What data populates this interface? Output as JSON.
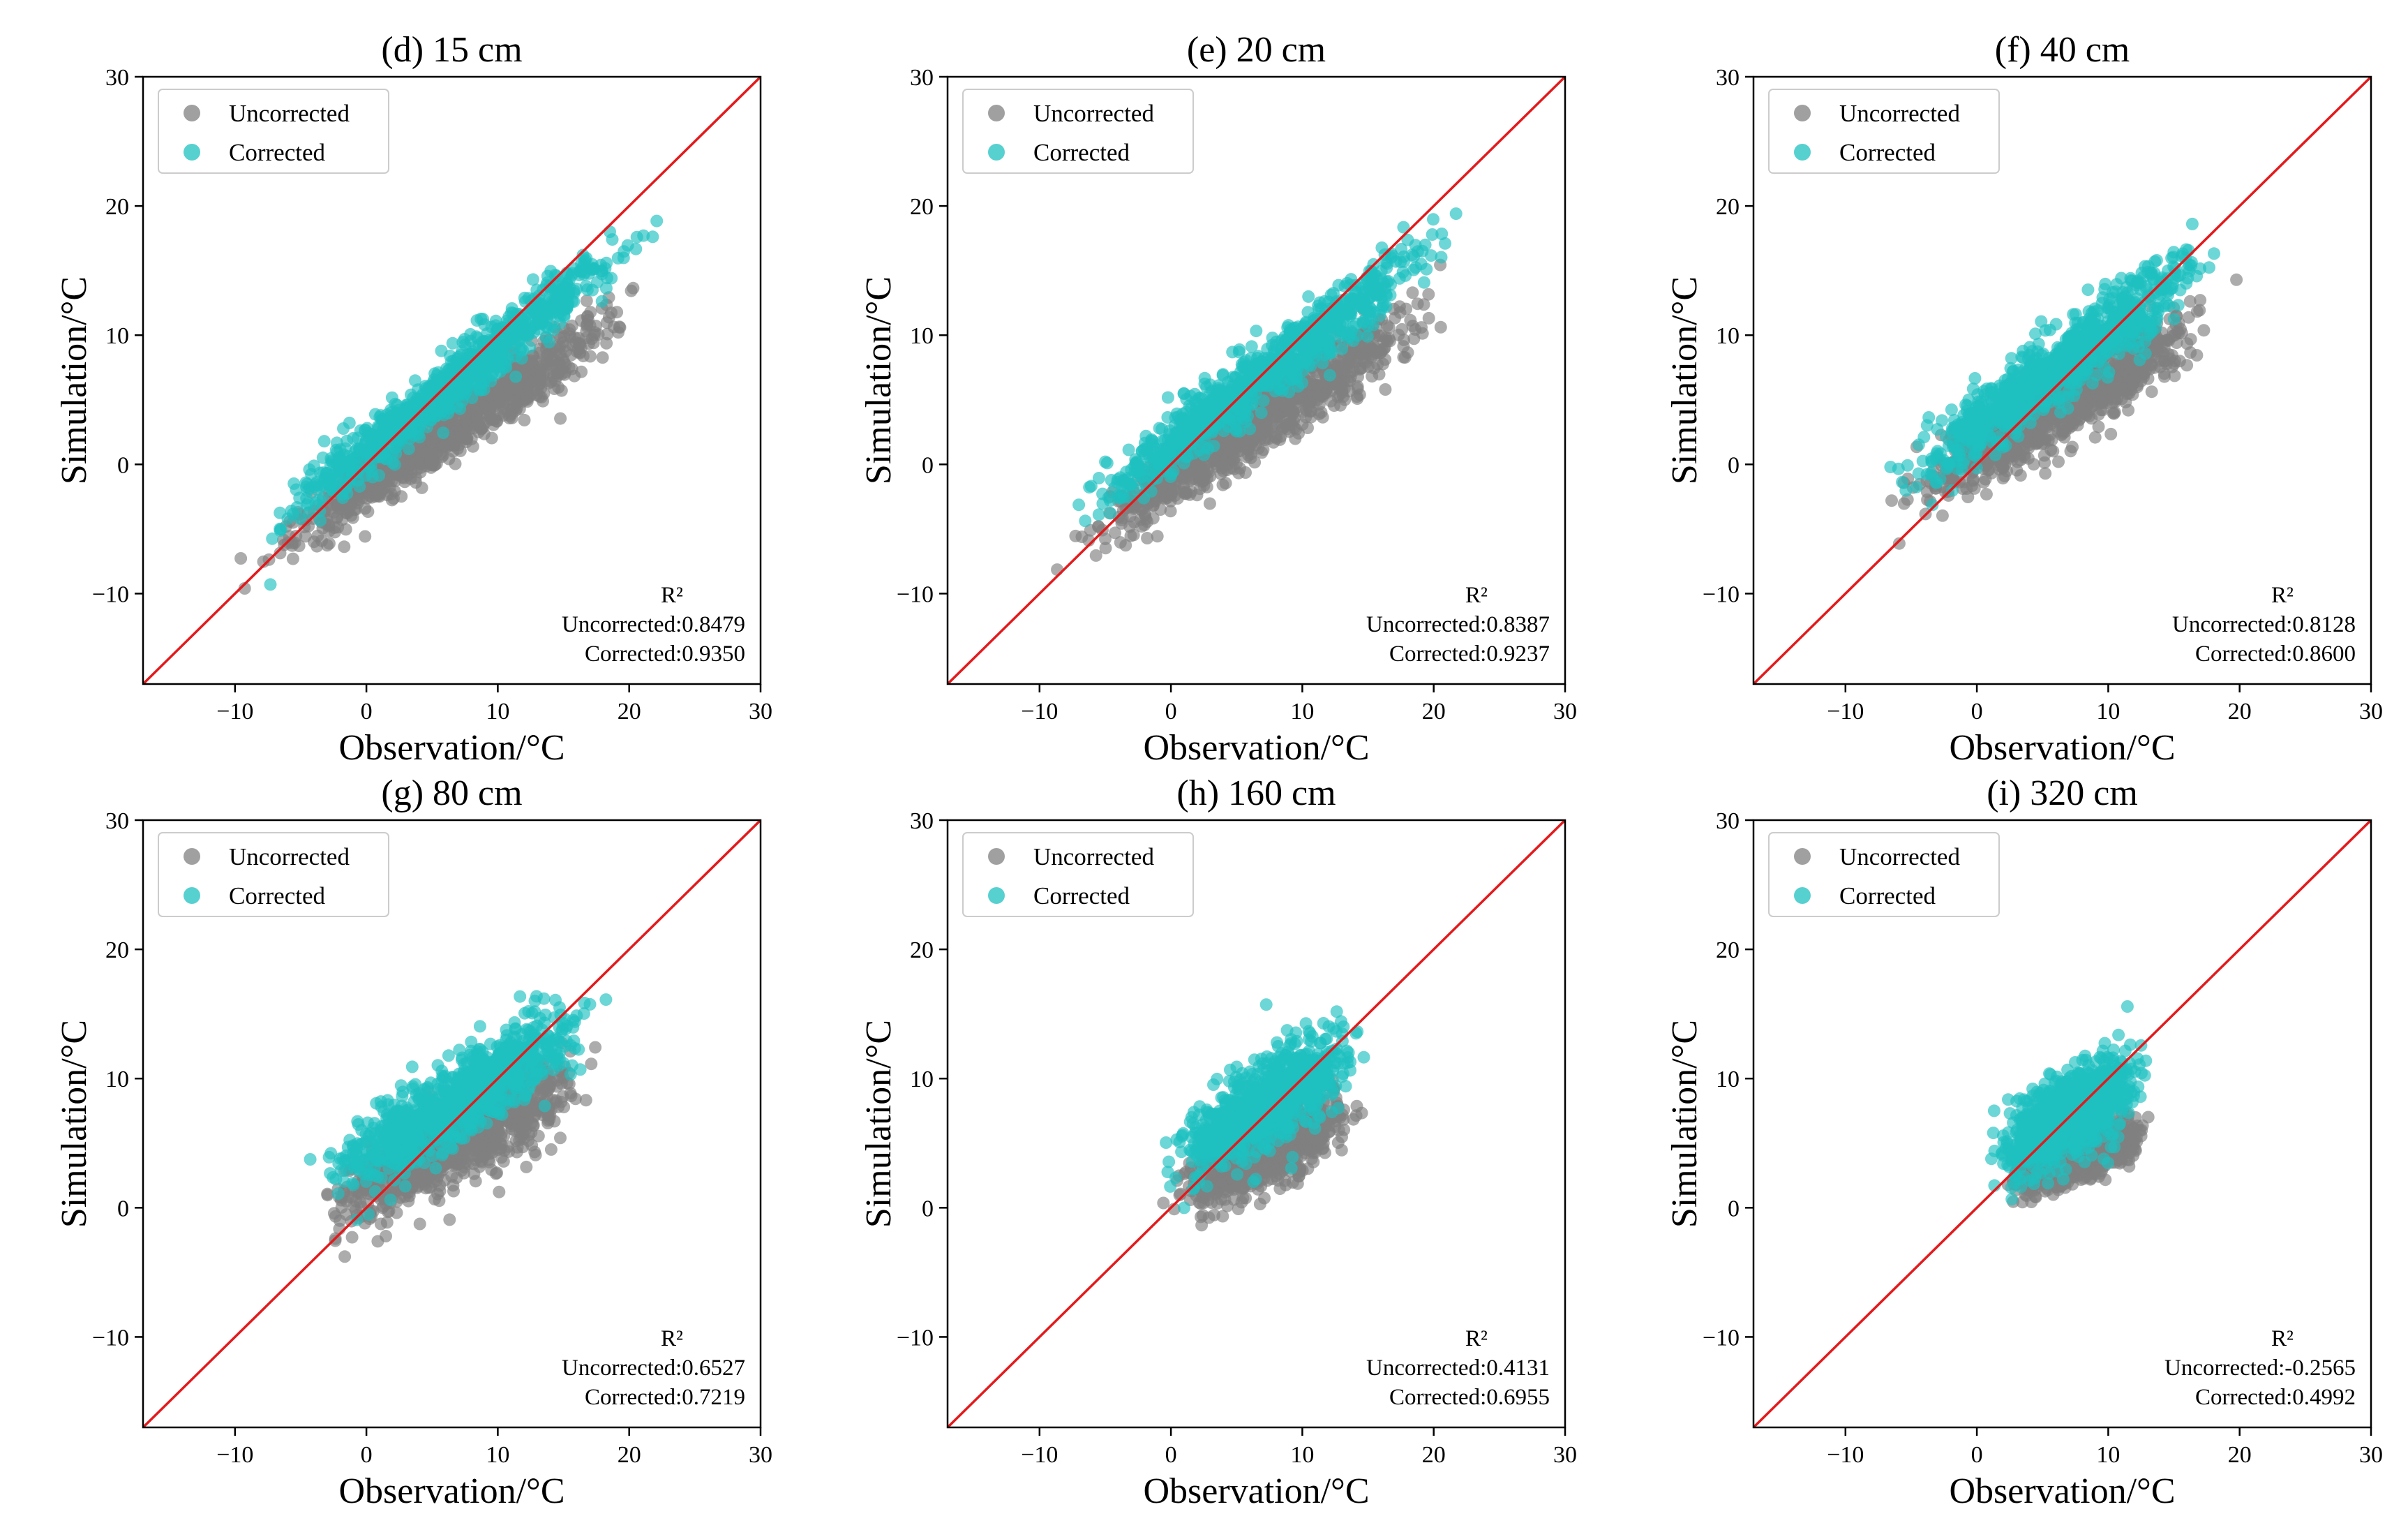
{
  "colors": {
    "uncorrected": "#808080",
    "corrected": "#1fc0c0",
    "identity": "#e31a1c"
  },
  "chart_data": [
    {
      "type": "scatter",
      "title": "(d) 15 cm",
      "xlabel": "Observation/°C",
      "ylabel": "Simulation/°C",
      "xlim": [
        -17,
        30
      ],
      "ylim": [
        -17,
        30
      ],
      "xticks": [
        -10,
        0,
        10,
        20,
        30
      ],
      "yticks": [
        -10,
        0,
        10,
        20,
        30
      ],
      "legend": [
        "Uncorrected",
        "Corrected"
      ],
      "legend_position": "top-left",
      "stats": {
        "header": "R²",
        "uncorrected": "Uncorrected:0.8479",
        "corrected": "Corrected:0.9350"
      },
      "series": [
        {
          "name": "Uncorrected",
          "x_range": [
            -11,
            24
          ],
          "slope": 0.68,
          "intercept": -1.7,
          "noise": 1.2
        },
        {
          "name": "Corrected",
          "x_range": [
            -11,
            24
          ],
          "slope": 0.8,
          "intercept": 1.1,
          "noise": 1.1
        }
      ]
    },
    {
      "type": "scatter",
      "title": "(e) 20 cm",
      "xlabel": "Observation/°C",
      "ylabel": "Simulation/°C",
      "xlim": [
        -17,
        30
      ],
      "ylim": [
        -17,
        30
      ],
      "xticks": [
        -10,
        0,
        10,
        20,
        30
      ],
      "yticks": [
        -10,
        0,
        10,
        20,
        30
      ],
      "legend": [
        "Uncorrected",
        "Corrected"
      ],
      "legend_position": "top-left",
      "stats": {
        "header": "R²",
        "uncorrected": "Uncorrected:0.8387",
        "corrected": "Corrected:0.9237"
      },
      "series": [
        {
          "name": "Uncorrected",
          "x_range": [
            -10,
            24
          ],
          "slope": 0.67,
          "intercept": -1.3,
          "noise": 1.3
        },
        {
          "name": "Corrected",
          "x_range": [
            -10,
            24
          ],
          "slope": 0.77,
          "intercept": 1.6,
          "noise": 1.2
        }
      ]
    },
    {
      "type": "scatter",
      "title": "(f) 40 cm",
      "xlabel": "Observation/°C",
      "ylabel": "Simulation/°C",
      "xlim": [
        -17,
        30
      ],
      "ylim": [
        -17,
        30
      ],
      "xticks": [
        -10,
        0,
        10,
        20,
        30
      ],
      "yticks": [
        -10,
        0,
        10,
        20,
        30
      ],
      "legend": [
        "Uncorrected",
        "Corrected"
      ],
      "legend_position": "top-left",
      "stats": {
        "header": "R²",
        "uncorrected": "Uncorrected:0.8128",
        "corrected": "Corrected:0.8600"
      },
      "series": [
        {
          "name": "Uncorrected",
          "x_range": [
            -9,
            21
          ],
          "slope": 0.6,
          "intercept": 0.6,
          "noise": 1.5
        },
        {
          "name": "Corrected",
          "x_range": [
            -9,
            21
          ],
          "slope": 0.75,
          "intercept": 3.0,
          "noise": 1.4
        }
      ]
    },
    {
      "type": "scatter",
      "title": "(g) 80 cm",
      "xlabel": "Observation/°C",
      "ylabel": "Simulation/°C",
      "xlim": [
        -17,
        30
      ],
      "ylim": [
        -17,
        30
      ],
      "xticks": [
        -10,
        0,
        10,
        20,
        30
      ],
      "yticks": [
        -10,
        0,
        10,
        20,
        30
      ],
      "legend": [
        "Uncorrected",
        "Corrected"
      ],
      "legend_position": "top-left",
      "stats": {
        "header": "R²",
        "uncorrected": "Uncorrected:0.6527",
        "corrected": "Corrected:0.7219"
      },
      "series": [
        {
          "name": "Uncorrected",
          "x_range": [
            -6,
            20
          ],
          "slope": 0.5,
          "intercept": 1.5,
          "noise": 1.6
        },
        {
          "name": "Corrected",
          "x_range": [
            -6,
            20
          ],
          "slope": 0.6,
          "intercept": 4.2,
          "noise": 1.6
        }
      ]
    },
    {
      "type": "scatter",
      "title": "(h) 160 cm",
      "xlabel": "Observation/°C",
      "ylabel": "Simulation/°C",
      "xlim": [
        -17,
        30
      ],
      "ylim": [
        -17,
        30
      ],
      "xticks": [
        -10,
        0,
        10,
        20,
        30
      ],
      "yticks": [
        -10,
        0,
        10,
        20,
        30
      ],
      "legend": [
        "Uncorrected",
        "Corrected"
      ],
      "legend_position": "top-left",
      "stats": {
        "header": "R²",
        "uncorrected": "Uncorrected:0.4131",
        "corrected": "Corrected:0.6955"
      },
      "series": [
        {
          "name": "Uncorrected",
          "x_range": [
            -1.5,
            16
          ],
          "slope": 0.45,
          "intercept": 1.2,
          "noise": 1.4
        },
        {
          "name": "Corrected",
          "x_range": [
            -1.5,
            16
          ],
          "slope": 0.6,
          "intercept": 3.8,
          "noise": 1.6
        }
      ]
    },
    {
      "type": "scatter",
      "title": "(i) 320 cm",
      "xlabel": "Observation/°C",
      "ylabel": "Simulation/°C",
      "xlim": [
        -17,
        30
      ],
      "ylim": [
        -17,
        30
      ],
      "xticks": [
        -10,
        0,
        10,
        20,
        30
      ],
      "yticks": [
        -10,
        0,
        10,
        20,
        30
      ],
      "legend": [
        "Uncorrected",
        "Corrected"
      ],
      "legend_position": "top-left",
      "stats": {
        "header": "R²",
        "uncorrected": "Uncorrected:-0.2565",
        "corrected": "Corrected:0.4992"
      },
      "series": [
        {
          "name": "Uncorrected",
          "x_range": [
            1,
            14
          ],
          "slope": 0.35,
          "intercept": 1.2,
          "noise": 0.9
        },
        {
          "name": "Corrected",
          "x_range": [
            0,
            14
          ],
          "slope": 0.55,
          "intercept": 3.2,
          "noise": 1.6
        }
      ]
    }
  ]
}
